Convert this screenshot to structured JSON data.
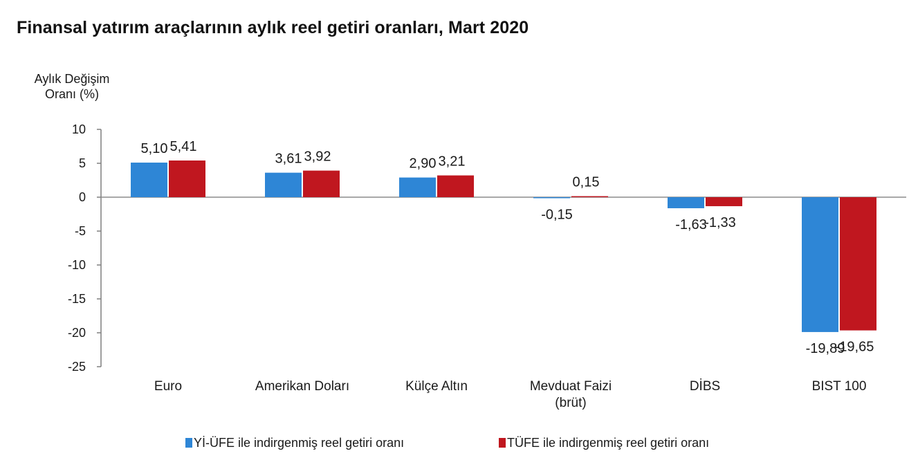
{
  "chart_data": {
    "type": "bar",
    "title": "Finansal yatırım araçlarının aylık reel getiri oranları, Mart 2020",
    "ylabel": [
      "Aylık Değişim",
      "Oranı (%)"
    ],
    "xlabel": "",
    "ylim": [
      -25,
      10
    ],
    "yticks": [
      10,
      5,
      0,
      -5,
      -10,
      -15,
      -20,
      -25
    ],
    "grid": false,
    "legend_position": "bottom",
    "categories": [
      [
        "Euro"
      ],
      [
        "Amerikan Doları"
      ],
      [
        "Külçe Altın"
      ],
      [
        "Mevduat Faizi",
        "(brüt)"
      ],
      [
        "DİBS"
      ],
      [
        "BIST 100"
      ]
    ],
    "series": [
      {
        "name": "Yİ-ÜFE ile indirgenmiş reel getiri oranı",
        "color": "#2e86d6",
        "values": [
          5.1,
          3.61,
          2.9,
          -0.15,
          -1.63,
          -19.89
        ],
        "labels": [
          "5,10",
          "3,61",
          "2,90",
          "-0,15",
          "-1,63",
          "-19,89"
        ]
      },
      {
        "name": "TÜFE ile indirgenmiş reel getiri oranı",
        "color": "#c0171f",
        "values": [
          5.41,
          3.92,
          3.21,
          0.15,
          -1.33,
          -19.65
        ],
        "labels": [
          "5,41",
          "3,92",
          "3,21",
          "0,15",
          "-1,33",
          "-19,65"
        ]
      }
    ]
  }
}
